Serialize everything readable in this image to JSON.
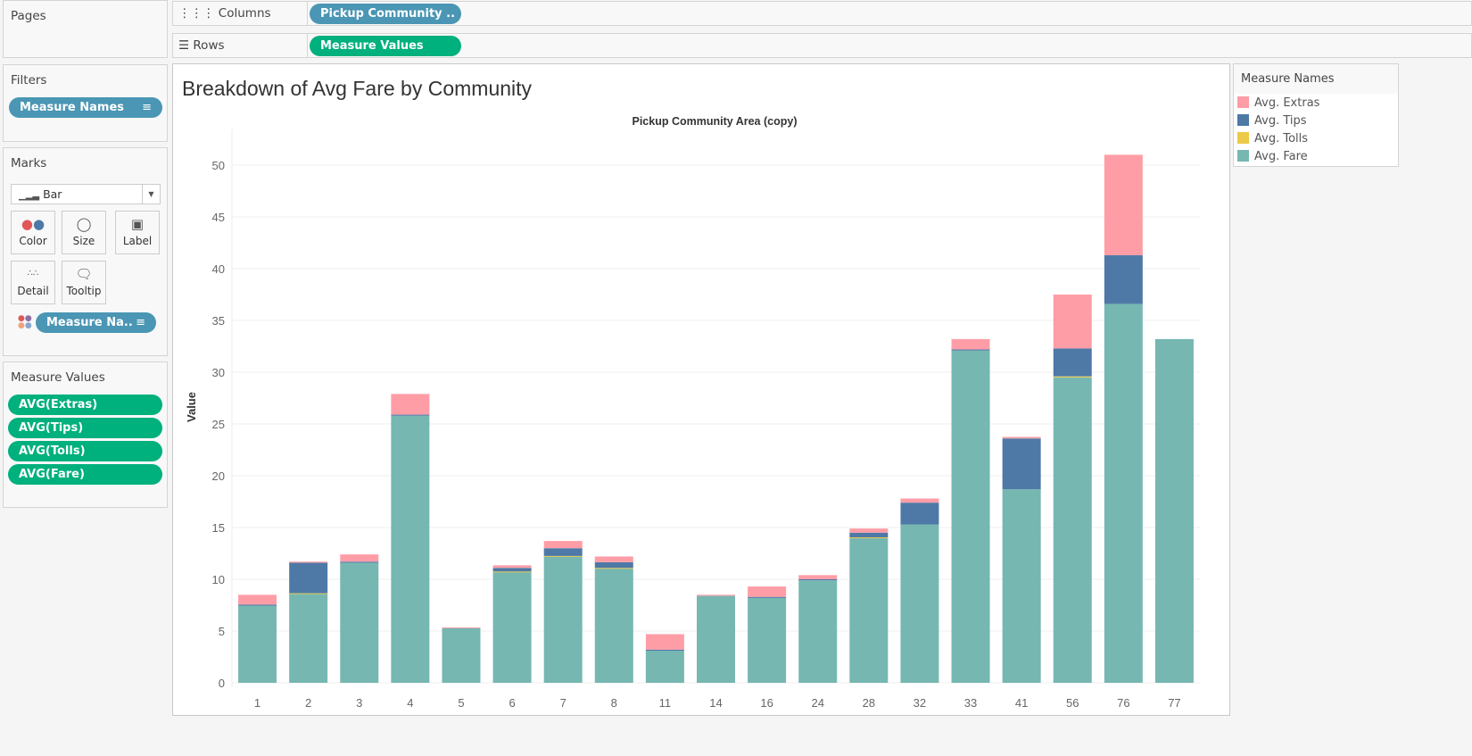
{
  "left": {
    "pages": {
      "title": "Pages"
    },
    "filters": {
      "title": "Filters",
      "pill": "Measure Names"
    },
    "marks": {
      "title": "Marks",
      "type": "Bar",
      "buttons": [
        "Color",
        "Size",
        "Label",
        "Detail",
        "Tooltip"
      ],
      "color_pill": "Measure Na.."
    },
    "measure_values": {
      "title": "Measure Values",
      "pills": [
        "AVG(Extras)",
        "AVG(Tips)",
        "AVG(Tolls)",
        "AVG(Fare)"
      ]
    }
  },
  "shelves": {
    "columns": {
      "label": "Columns",
      "pill": "Pickup Community .."
    },
    "rows": {
      "label": "Rows",
      "pill": "Measure Values"
    }
  },
  "legend": {
    "title": "Measure Names",
    "items": [
      {
        "label": "Avg. Extras",
        "color": "#ff9da7"
      },
      {
        "label": "Avg. Tips",
        "color": "#4e79a7"
      },
      {
        "label": "Avg. Tolls",
        "color": "#edc948"
      },
      {
        "label": "Avg. Fare",
        "color": "#76b7b2"
      }
    ]
  },
  "chart_data": {
    "type": "bar",
    "stacked": true,
    "title": "Breakdown of Avg Fare by Community",
    "column_header": "Pickup Community Area (copy)",
    "ylabel": "Value",
    "ylim": [
      0,
      52
    ],
    "yticks": [
      0,
      5,
      10,
      15,
      20,
      25,
      30,
      35,
      40,
      45,
      50
    ],
    "grid": true,
    "legend_placement": "right",
    "categories": [
      "1",
      "2",
      "3",
      "4",
      "5",
      "6",
      "7",
      "8",
      "11",
      "14",
      "16",
      "24",
      "28",
      "32",
      "33",
      "41",
      "56",
      "76",
      "77"
    ],
    "series": [
      {
        "name": "Avg. Fare",
        "color": "#76b7b2",
        "values": [
          7.45,
          8.6,
          11.6,
          25.8,
          5.3,
          10.7,
          12.2,
          11.05,
          3.1,
          8.4,
          8.2,
          9.9,
          14.0,
          15.3,
          32.1,
          18.7,
          29.5,
          36.6,
          33.2
        ]
      },
      {
        "name": "Avg. Tolls",
        "color": "#edc948",
        "values": [
          0,
          0.05,
          0,
          0,
          0,
          0.05,
          0.05,
          0.05,
          0,
          0,
          0,
          0,
          0.05,
          0,
          0,
          0,
          0.1,
          0,
          0
        ]
      },
      {
        "name": "Avg. Tips",
        "color": "#4e79a7",
        "values": [
          0.1,
          2.95,
          0.1,
          0.1,
          0,
          0.35,
          0.75,
          0.55,
          0.1,
          0,
          0.1,
          0.1,
          0.45,
          2.1,
          0.1,
          4.9,
          2.7,
          4.7,
          0
        ]
      },
      {
        "name": "Avg. Extras",
        "color": "#ff9da7",
        "values": [
          0.95,
          0.1,
          0.7,
          2.0,
          0.05,
          0.25,
          0.7,
          0.55,
          1.5,
          0.1,
          1.0,
          0.4,
          0.4,
          0.4,
          1.0,
          0.15,
          5.2,
          9.7,
          0
        ]
      }
    ]
  }
}
